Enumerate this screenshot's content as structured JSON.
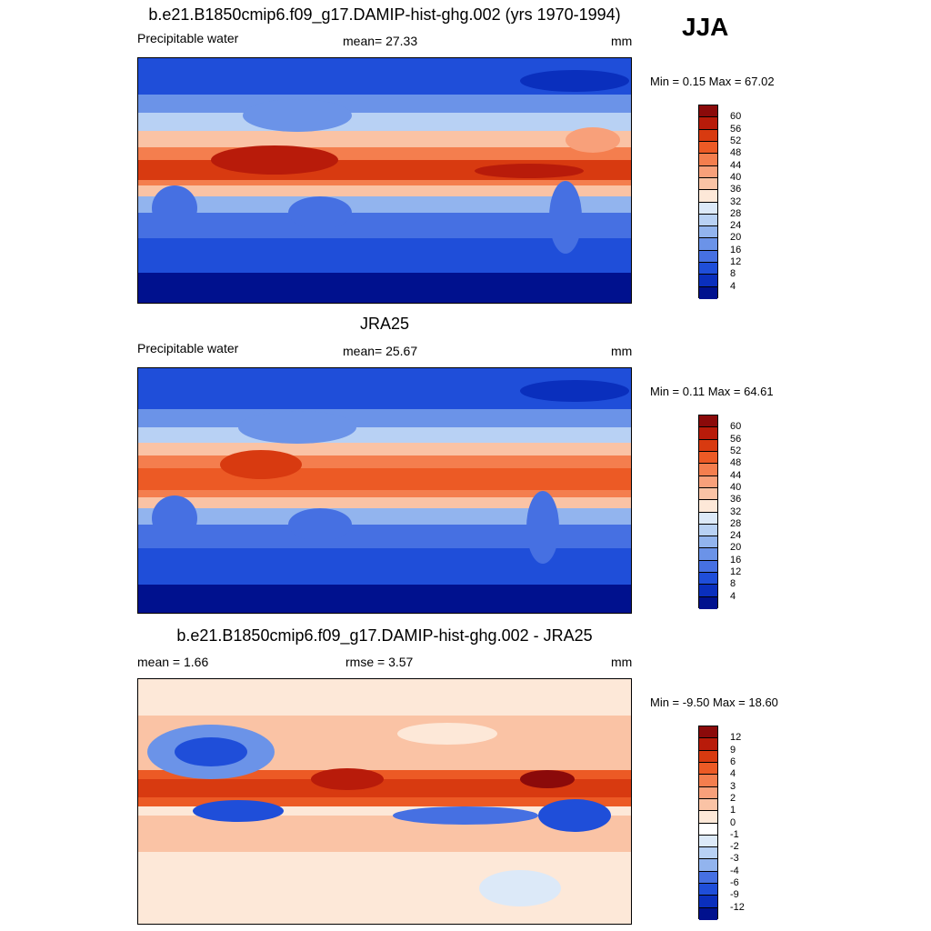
{
  "season": "JJA",
  "panels": [
    {
      "title": "b.e21.B1850cmip6.f09_g17.DAMIP-hist-ghg.002 (yrs 1970-1994)",
      "left_label": "Precipitable water",
      "mid_label": "mean=  27.33",
      "units": "mm",
      "minmax": "Min =   0.15 Max =  67.02"
    },
    {
      "title": "JRA25",
      "left_label": "Precipitable water",
      "mid_label": "mean=  25.67",
      "units": "mm",
      "minmax": "Min =   0.11 Max =  64.61"
    },
    {
      "title": "b.e21.B1850cmip6.f09_g17.DAMIP-hist-ghg.002 - JRA25",
      "left_label": "mean =   1.66",
      "mid_label": "rmse =   3.57",
      "units": "mm",
      "minmax": "Min =  -9.50 Max =  18.60"
    }
  ],
  "chart_data": [
    {
      "type": "heatmap",
      "title": "b.e21.B1850cmip6.f09_g17.DAMIP-hist-ghg.002 (yrs 1970-1994)",
      "variable": "Precipitable water",
      "units": "mm",
      "mean": 27.33,
      "min": 0.15,
      "max": 67.02,
      "colorbar_labels": [
        "60",
        "56",
        "52",
        "48",
        "44",
        "40",
        "36",
        "32",
        "28",
        "24",
        "20",
        "16",
        "12",
        "8",
        "4"
      ],
      "colorbar_colors": [
        "#8b0a0a",
        "#b81b0a",
        "#d83a10",
        "#ec5a25",
        "#f47e4e",
        "#f8a07a",
        "#fac3a5",
        "#fde8d8",
        "#dce9f8",
        "#b8d1f4",
        "#92b4ee",
        "#6b93e8",
        "#4670e2",
        "#1f4ed9",
        "#0a2fbd",
        "#00118e"
      ]
    },
    {
      "type": "heatmap",
      "title": "JRA25",
      "variable": "Precipitable water",
      "units": "mm",
      "mean": 25.67,
      "min": 0.11,
      "max": 64.61,
      "colorbar_labels": [
        "60",
        "56",
        "52",
        "48",
        "44",
        "40",
        "36",
        "32",
        "28",
        "24",
        "20",
        "16",
        "12",
        "8",
        "4"
      ],
      "colorbar_colors": [
        "#8b0a0a",
        "#b81b0a",
        "#d83a10",
        "#ec5a25",
        "#f47e4e",
        "#f8a07a",
        "#fac3a5",
        "#fde8d8",
        "#dce9f8",
        "#b8d1f4",
        "#92b4ee",
        "#6b93e8",
        "#4670e2",
        "#1f4ed9",
        "#0a2fbd",
        "#00118e"
      ]
    },
    {
      "type": "heatmap",
      "title": "b.e21.B1850cmip6.f09_g17.DAMIP-hist-ghg.002 - JRA25",
      "units": "mm",
      "mean": 1.66,
      "rmse": 3.57,
      "min": -9.5,
      "max": 18.6,
      "colorbar_labels": [
        "12",
        "9",
        "6",
        "4",
        "3",
        "2",
        "1",
        "0",
        "-1",
        "-2",
        "-3",
        "-4",
        "-6",
        "-9",
        "-12"
      ],
      "colorbar_colors": [
        "#8b0a0a",
        "#b81b0a",
        "#d83a10",
        "#ec5a25",
        "#f47e4e",
        "#f8a07a",
        "#fac3a5",
        "#fde8d8",
        "#ffffff",
        "#dce9f8",
        "#b8d1f4",
        "#92b4ee",
        "#4670e2",
        "#1f4ed9",
        "#0a2fbd",
        "#00118e"
      ]
    }
  ]
}
